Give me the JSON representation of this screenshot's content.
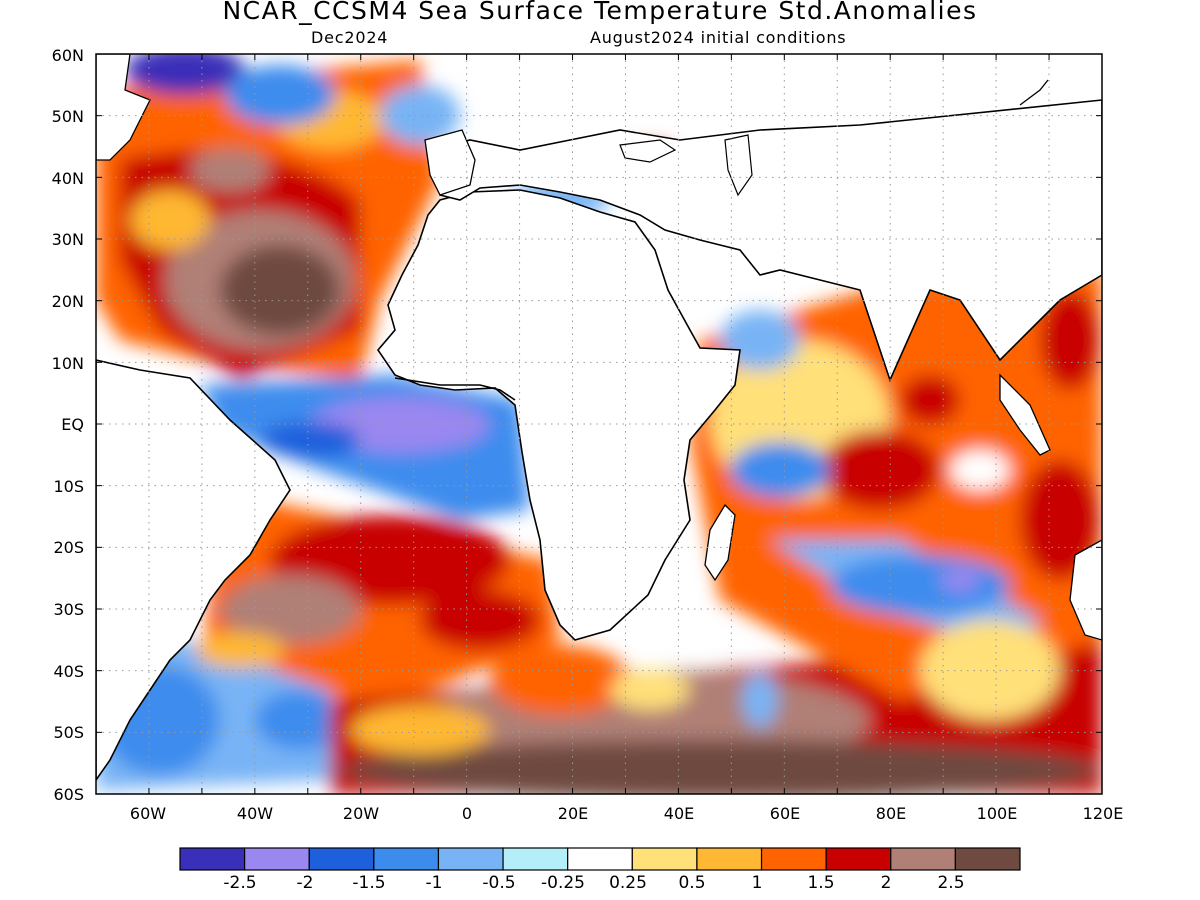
{
  "header": {
    "title": "NCAR_CCSM4 Sea Surface Temperature Std.Anomalies",
    "valid_time": "Dec2024",
    "init": "August2024 initial conditions"
  },
  "axes": {
    "lat_labels": [
      "60N",
      "50N",
      "40N",
      "30N",
      "20N",
      "10N",
      "EQ",
      "10S",
      "20S",
      "30S",
      "40S",
      "50S",
      "60S"
    ],
    "lon_labels": [
      "60W",
      "40W",
      "20W",
      "0",
      "20E",
      "40E",
      "60E",
      "80E",
      "100E",
      "120E"
    ]
  },
  "colorbar": {
    "colors": [
      "#3a2fb8",
      "#9a87f0",
      "#1e5fdc",
      "#3c8cee",
      "#78b4f5",
      "#b4eef8",
      "#ffffff",
      "#ffe079",
      "#ffb833",
      "#ff6400",
      "#c80000",
      "#b07f76",
      "#6e4a40"
    ],
    "labels": [
      "-2.5",
      "-2",
      "-1.5",
      "-1",
      "-0.5",
      "-0.25",
      "0.25",
      "0.5",
      "1",
      "1.5",
      "2",
      "2.5"
    ]
  },
  "chart_data": {
    "type": "heatmap",
    "title": "NCAR_CCSM4 Sea Surface Temperature Std.Anomalies",
    "subtitle": [
      "Dec2024",
      "August2024 initial conditions"
    ],
    "x_range": [
      "70W",
      "120E"
    ],
    "y_range": [
      "60S",
      "60N"
    ],
    "grid": true,
    "levels": [
      -2.5,
      -2,
      -1.5,
      -1,
      -0.5,
      -0.25,
      0.25,
      0.5,
      1,
      1.5,
      2,
      2.5
    ],
    "regions": [
      {
        "area": "Subtropical North Atlantic (15N-45N, 60W-15W)",
        "anomaly_band": "1.5 to >2.5"
      },
      {
        "area": "Tropical Atlantic / Gulf of Guinea (EQ-10S, 30W-10E)",
        "anomaly_band": "-0.5 to -2"
      },
      {
        "area": "South Atlantic (15S-35S)",
        "anomaly_band": "1 to 2.5"
      },
      {
        "area": "Southern Ocean (40S-60S, 0-120E)",
        "anomaly_band": ">2"
      },
      {
        "area": "Southwest Atlantic off Argentina (35S-60S, 70W-30W)",
        "anomaly_band": "-0.5 to -2"
      },
      {
        "area": "South Indian Ocean band (20S-35S, 60E-105E)",
        "anomaly_band": "-0.5 to -2"
      },
      {
        "area": "Central/East Indian Ocean (0-15S, 70E-100E)",
        "anomaly_band": "1 to 2"
      },
      {
        "area": "Western Mediterranean",
        "anomaly_band": "-0.25 to -1"
      }
    ]
  }
}
